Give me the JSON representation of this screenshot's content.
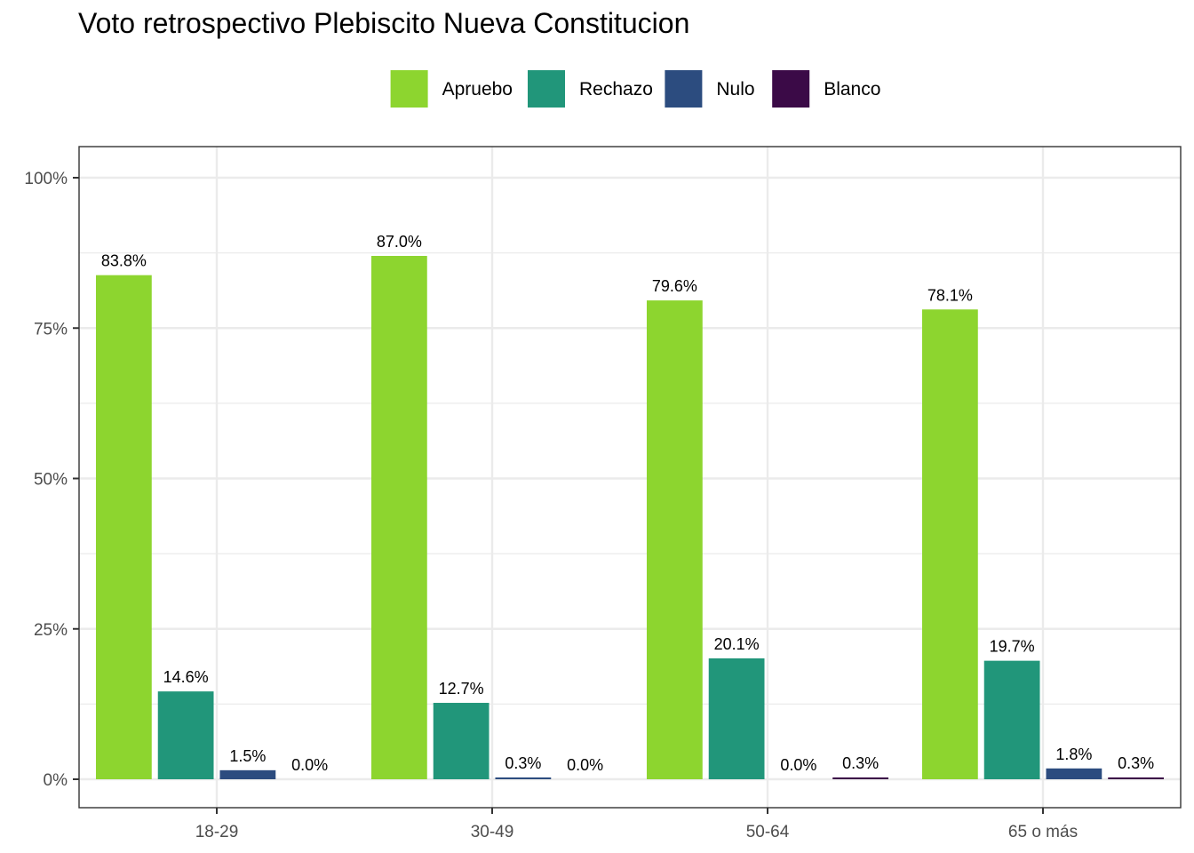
{
  "chart_data": {
    "type": "bar",
    "title": "Voto retrospectivo Plebiscito Nueva Constitucion",
    "xlabel": "",
    "ylabel": "",
    "categories": [
      "18-29",
      "30-49",
      "50-64",
      "65 o más"
    ],
    "series": [
      {
        "name": "Apruebo",
        "color": "#8dd52f",
        "values": [
          83.8,
          87.0,
          79.6,
          78.1
        ],
        "labels": [
          "83.8%",
          "87.0%",
          "79.6%",
          "78.1%"
        ]
      },
      {
        "name": "Rechazo",
        "color": "#21967a",
        "values": [
          14.6,
          12.7,
          20.1,
          19.7
        ],
        "labels": [
          "14.6%",
          "12.7%",
          "20.1%",
          "19.7%"
        ]
      },
      {
        "name": "Nulo",
        "color": "#2c4c7f",
        "values": [
          1.5,
          0.3,
          0.0,
          1.8
        ],
        "labels": [
          "1.5%",
          "0.3%",
          "0.0%",
          "1.8%"
        ]
      },
      {
        "name": "Blanco",
        "color": "#3b0a47",
        "values": [
          0.0,
          0.0,
          0.3,
          0.3
        ],
        "labels": [
          "0.0%",
          "0.0%",
          "0.3%",
          "0.3%"
        ]
      }
    ],
    "ylim": [
      0,
      104.5
    ],
    "yticks": [
      0,
      25,
      50,
      75,
      100
    ],
    "ytick_labels": [
      "0%",
      "25%",
      "50%",
      "75%",
      "100%"
    ],
    "grid": true,
    "legend": "top"
  }
}
